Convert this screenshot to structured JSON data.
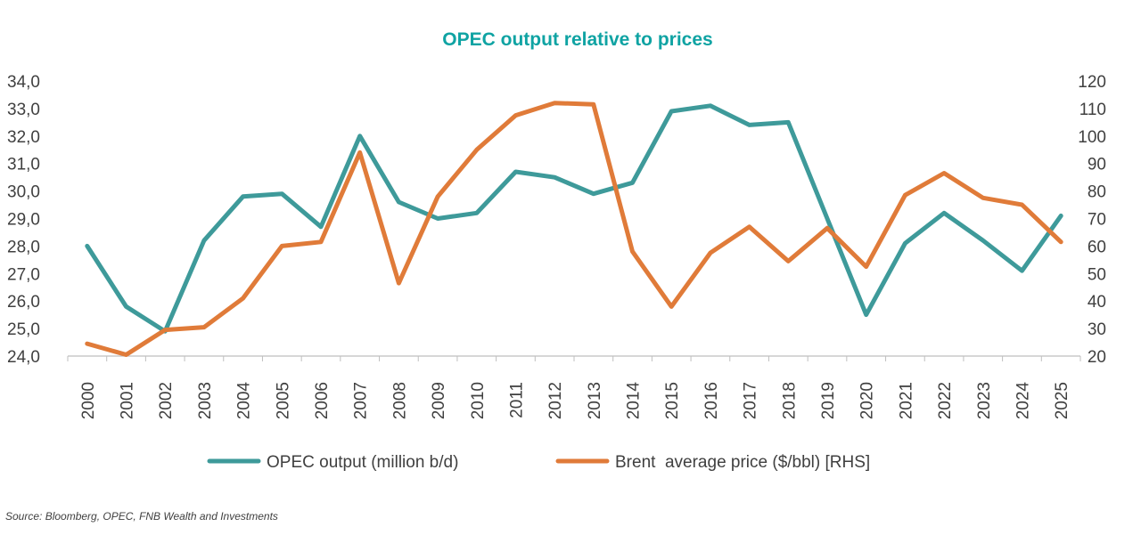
{
  "chart_data": {
    "type": "line",
    "title": "OPEC output relative to prices",
    "categories": [
      "2000",
      "2001",
      "2002",
      "2003",
      "2004",
      "2005",
      "2006",
      "2007",
      "2008",
      "2009",
      "2010",
      "2011",
      "2012",
      "2013",
      "2014",
      "2015",
      "2016",
      "2017",
      "2018",
      "2019",
      "2020",
      "2021",
      "2022",
      "2023",
      "2024",
      "2025"
    ],
    "y_left": {
      "min": 24.0,
      "max": 34.0,
      "step": 1.0,
      "ticks": [
        "24,0",
        "25,0",
        "26,0",
        "27,0",
        "28,0",
        "29,0",
        "30,0",
        "31,0",
        "32,0",
        "33,0",
        "34,0"
      ]
    },
    "y_right": {
      "min": 20,
      "max": 120,
      "step": 10,
      "ticks": [
        "20",
        "30",
        "40",
        "50",
        "60",
        "70",
        "80",
        "90",
        "100",
        "110",
        "120"
      ]
    },
    "series": [
      {
        "name": "OPEC output (million b/d)",
        "axis": "left",
        "color": "#3E9A9A",
        "values": [
          28.0,
          25.8,
          24.9,
          28.2,
          29.8,
          29.9,
          28.7,
          32.0,
          29.6,
          29.0,
          29.2,
          30.7,
          30.5,
          29.9,
          30.3,
          32.9,
          33.1,
          32.4,
          32.5,
          29.0,
          25.5,
          28.1,
          29.2,
          28.2,
          27.1,
          29.1
        ]
      },
      {
        "name": "Brent  average price ($/bbl) [RHS]",
        "axis": "right",
        "color": "#E07B39",
        "values": [
          24.5,
          20.5,
          29.5,
          30.5,
          41.0,
          60.0,
          61.5,
          94.0,
          46.5,
          78.0,
          95.0,
          107.5,
          112.0,
          111.5,
          58.0,
          38.0,
          57.5,
          67.0,
          54.5,
          66.5,
          52.5,
          78.5,
          86.5,
          77.5,
          75.0,
          61.5
        ]
      }
    ],
    "title_color": "#0FA3A3",
    "axis_color": "#BFBFBF",
    "legend_position": "bottom"
  },
  "source": "Source: Bloomberg, OPEC, FNB Wealth and Investments"
}
